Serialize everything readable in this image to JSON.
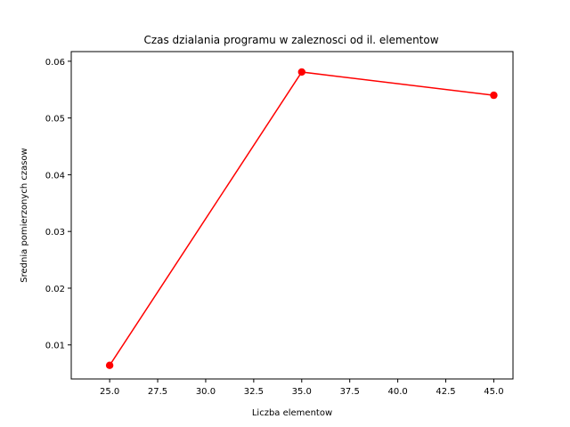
{
  "chart_data": {
    "type": "line",
    "title": "Czas dzialania programu w zaleznosci od il. elementow",
    "xlabel": "Liczba elementow",
    "ylabel": "Srednia pomierzonych czasow",
    "xlim": [
      23.0,
      46.0
    ],
    "ylim": [
      0.004,
      0.0617
    ],
    "xticks": [
      25.0,
      27.5,
      30.0,
      32.5,
      35.0,
      37.5,
      40.0,
      42.5,
      45.0
    ],
    "xtick_labels": [
      "25.0",
      "27.5",
      "30.0",
      "32.5",
      "35.0",
      "37.5",
      "40.0",
      "42.5",
      "45.0"
    ],
    "yticks": [
      0.01,
      0.02,
      0.03,
      0.04,
      0.05,
      0.06
    ],
    "ytick_labels": [
      "0.01",
      "0.02",
      "0.03",
      "0.04",
      "0.05",
      "0.06"
    ],
    "grid": false,
    "series": [
      {
        "color": "#ff0000",
        "marker": "circle",
        "x": [
          25,
          35,
          45
        ],
        "y": [
          0.0064,
          0.0581,
          0.054
        ]
      }
    ]
  }
}
